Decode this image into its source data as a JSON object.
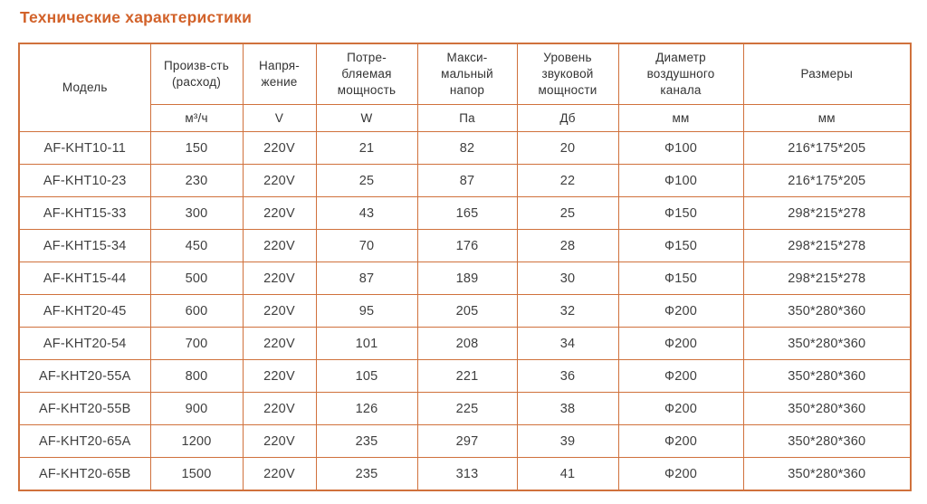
{
  "title": "Технические характеристики",
  "colors": {
    "title": "#d2622a",
    "border": "#d0713c",
    "text": "#3f3f3f",
    "header_text": "#333333",
    "background": "#ffffff"
  },
  "table": {
    "header": {
      "model_label": "Модель",
      "groups": [
        {
          "label": "Произв-сть\n(расход)",
          "unit": "м³/ч"
        },
        {
          "label": "Напря-\nжение",
          "unit": "V"
        },
        {
          "label": "Потре-\nбляемая\nмощность",
          "unit": "W"
        },
        {
          "label": "Макси-\nмальный\nнапор",
          "unit": "Па"
        },
        {
          "label": "Уровень\nзвуковой\nмощности",
          "unit": "Дб"
        },
        {
          "label": "Диаметр\nвоздушного\nканала",
          "unit": "мм"
        },
        {
          "label": "Размеры",
          "unit": "мм"
        }
      ]
    },
    "rows": [
      {
        "model": "AF-KHT10-11",
        "values": [
          "150",
          "220V",
          "21",
          "82",
          "20",
          "Ф100",
          "216*175*205"
        ]
      },
      {
        "model": "AF-KHT10-23",
        "values": [
          "230",
          "220V",
          "25",
          "87",
          "22",
          "Ф100",
          "216*175*205"
        ]
      },
      {
        "model": "AF-KHT15-33",
        "values": [
          "300",
          "220V",
          "43",
          "165",
          "25",
          "Ф150",
          "298*215*278"
        ]
      },
      {
        "model": "AF-KHT15-34",
        "values": [
          "450",
          "220V",
          "70",
          "176",
          "28",
          "Ф150",
          "298*215*278"
        ]
      },
      {
        "model": "AF-KHT15-44",
        "values": [
          "500",
          "220V",
          "87",
          "189",
          "30",
          "Ф150",
          "298*215*278"
        ]
      },
      {
        "model": "AF-KHT20-45",
        "values": [
          "600",
          "220V",
          "95",
          "205",
          "32",
          "Ф200",
          "350*280*360"
        ]
      },
      {
        "model": "AF-KHT20-54",
        "values": [
          "700",
          "220V",
          "101",
          "208",
          "34",
          "Ф200",
          "350*280*360"
        ]
      },
      {
        "model": "AF-KHT20-55A",
        "values": [
          "800",
          "220V",
          "105",
          "221",
          "36",
          "Ф200",
          "350*280*360"
        ]
      },
      {
        "model": "AF-KHT20-55B",
        "values": [
          "900",
          "220V",
          "126",
          "225",
          "38",
          "Ф200",
          "350*280*360"
        ]
      },
      {
        "model": "AF-KHT20-65A",
        "values": [
          "1200",
          "220V",
          "235",
          "297",
          "39",
          "Ф200",
          "350*280*360"
        ]
      },
      {
        "model": "AF-KHT20-65B",
        "values": [
          "1500",
          "220V",
          "235",
          "313",
          "41",
          "Ф200",
          "350*280*360"
        ]
      }
    ]
  }
}
